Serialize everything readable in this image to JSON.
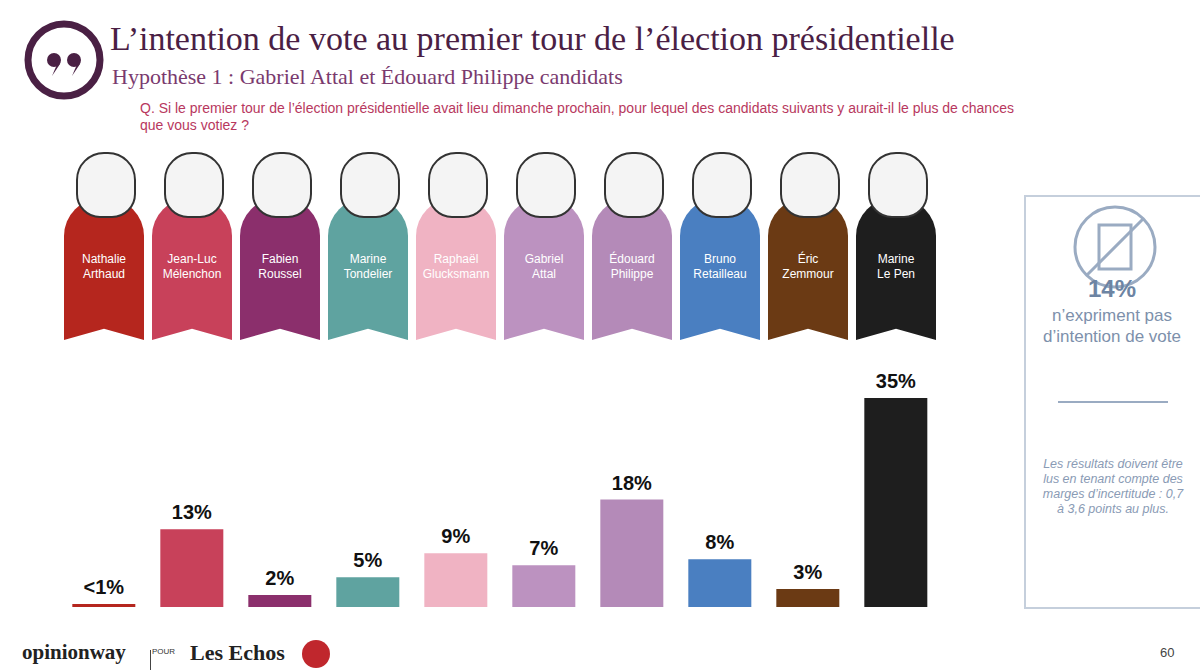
{
  "chart_data": {
    "type": "bar",
    "title": "L’intention de vote au premier tour de l’élection présidentielle",
    "subtitle": "Hypothèse 1 : Gabriel Attal et Édouard Philippe candidats",
    "question": "Q. Si le premier tour de l’élection présidentielle avait lieu dimanche prochain, pour lequel des candidats suivants y aurait-il le plus de chances que vous votiez ?",
    "categories": [
      "Nathalie Arthaud",
      "Jean-Luc Mélenchon",
      "Fabien Roussel",
      "Marine Tondelier",
      "Raphaël Glucksmann",
      "Gabriel Attal",
      "Édouard Philippe",
      "Bruno Retailleau",
      "Éric Zemmour",
      "Marine Le Pen"
    ],
    "values": [
      0.5,
      13,
      2,
      5,
      9,
      7,
      18,
      8,
      3,
      35
    ],
    "value_labels": [
      "<1%",
      "13%",
      "2%",
      "5%",
      "9%",
      "7%",
      "18%",
      "8%",
      "3%",
      "35%"
    ],
    "colors": [
      "#b5261e",
      "#c8415a",
      "#8b2f6c",
      "#5fa3a0",
      "#f0b3c3",
      "#bc92c0",
      "#b48ab8",
      "#4a7fc1",
      "#6b3a14",
      "#1e1e1e"
    ],
    "ylim": [
      0,
      35
    ],
    "data_labels": true,
    "tick_labels": false,
    "grid": false
  },
  "side_panel": {
    "value": "14%",
    "text": "n’expriment pas d’intention de vote",
    "note": "Les résultats doivent être lus en tenant compte des marges d’incertitude : 0,7 à 3,6 points au plus."
  },
  "footer": {
    "source": "opinionway",
    "for": "POUR",
    "client": "Les Echos",
    "page": "60"
  }
}
